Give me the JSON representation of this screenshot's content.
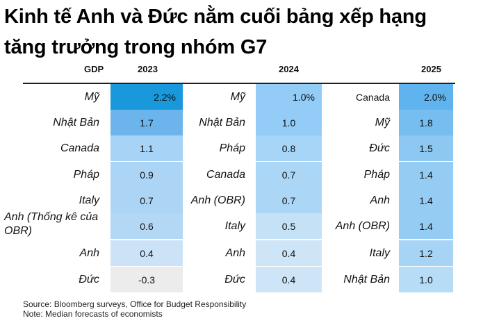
{
  "title_lines": [
    "Kinh tế Anh và Đức nằm cuối bảng xếp hạng",
    "tăng trưởng trong nhóm G7"
  ],
  "header": {
    "gdp_label": "GDP",
    "year_2023": "2023",
    "year_2024": "2024",
    "year_2025": "2025"
  },
  "chart_data": {
    "type": "table",
    "unit": "%",
    "columns": [
      {
        "year": "2023",
        "rows": [
          {
            "country": "Mỹ",
            "value": 2.2,
            "display": "2.2%",
            "color": "#1a98dc"
          },
          {
            "country": "Nhật Bản",
            "value": 1.7,
            "display": "1.7",
            "color": "#6cb5ec"
          },
          {
            "country": "Canada",
            "value": 1.1,
            "display": "1.1",
            "color": "#a7d3f6"
          },
          {
            "country": "Pháp",
            "value": 0.9,
            "display": "0.9",
            "color": "#acd4f5"
          },
          {
            "country": "Italy",
            "value": 0.7,
            "display": "0.7",
            "color": "#acd4f5"
          },
          {
            "country": "Anh (Thống kê của OBR)",
            "value": 0.6,
            "display": "0.6",
            "color": "#b3d8f6"
          },
          {
            "country": "Anh",
            "value": 0.4,
            "display": "0.4",
            "color": "#cce3f7"
          },
          {
            "country": "Đức",
            "value": -0.3,
            "display": "-0.3",
            "color": "#ececec"
          }
        ]
      },
      {
        "year": "2024",
        "rows": [
          {
            "country": "Mỹ",
            "value": 1.0,
            "display": "1.0%",
            "color": "#92ccf7"
          },
          {
            "country": "Nhật Bản",
            "value": 1.0,
            "display": "1.0",
            "color": "#92ccf7"
          },
          {
            "country": "Pháp",
            "value": 0.8,
            "display": "0.8",
            "color": "#a7d5f7"
          },
          {
            "country": "Canada",
            "value": 0.7,
            "display": "0.7",
            "color": "#acd6f6"
          },
          {
            "country": "Anh (OBR)",
            "value": 0.7,
            "display": "0.7",
            "color": "#acd6f6"
          },
          {
            "country": "Italy",
            "value": 0.5,
            "display": "0.5",
            "color": "#c5e1f6"
          },
          {
            "country": "Anh",
            "value": 0.4,
            "display": "0.4",
            "color": "#cde5f7"
          },
          {
            "country": "Đức",
            "value": 0.4,
            "display": "0.4",
            "color": "#cde5f7"
          }
        ]
      },
      {
        "year": "2025",
        "rows": [
          {
            "country": "Canada",
            "value": 2.0,
            "display": "2.0%",
            "color": "#5fb3ee"
          },
          {
            "country": "Mỹ",
            "value": 1.8,
            "display": "1.8",
            "color": "#76bdf0"
          },
          {
            "country": "Đức",
            "value": 1.5,
            "display": "1.5",
            "color": "#8dc8f2"
          },
          {
            "country": "Pháp",
            "value": 1.4,
            "display": "1.4",
            "color": "#95ccf3"
          },
          {
            "country": "Anh",
            "value": 1.4,
            "display": "1.4",
            "color": "#95ccf3"
          },
          {
            "country": "Anh (OBR)",
            "value": 1.4,
            "display": "1.4",
            "color": "#95ccf3"
          },
          {
            "country": "Italy",
            "value": 1.2,
            "display": "1.2",
            "color": "#a6d4f5"
          },
          {
            "country": "Nhật Bản",
            "value": 1.0,
            "display": "1.0",
            "color": "#b6dcf6"
          }
        ]
      }
    ]
  },
  "footer": {
    "source": "Source: Bloomberg surveys, Office for Budget Responsibility",
    "note": "Note: Median forecasts of economists"
  }
}
